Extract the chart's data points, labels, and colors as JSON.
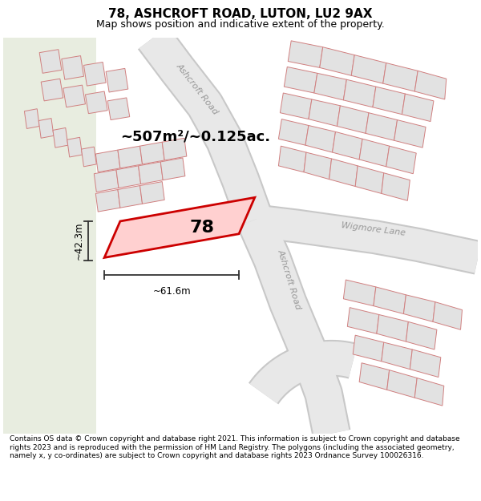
{
  "title": "78, ASHCROFT ROAD, LUTON, LU2 9AX",
  "subtitle": "Map shows position and indicative extent of the property.",
  "footer": "Contains OS data © Crown copyright and database right 2021. This information is subject to Crown copyright and database rights 2023 and is reproduced with the permission of HM Land Registry. The polygons (including the associated geometry, namely x, y co-ordinates) are subject to Crown copyright and database rights 2023 Ordnance Survey 100026316.",
  "bg_map_color": "#f7f6f2",
  "bg_green_color": "#e8ede0",
  "road_color": "#e8e8e8",
  "road_edge_color": "#d0d0d0",
  "plot_line_color": "#e07070",
  "building_fill_color": "#e2e2e2",
  "building_edge_color": "#d08080",
  "highlight_color": "#cc0000",
  "highlight_fill": "#ffd0d0",
  "dim_color": "#333333",
  "area_text": "~507m²/~0.125ac.",
  "label_78": "78",
  "dim_height": "~42.3m",
  "dim_width": "~61.6m",
  "road_label_ashcroft1": "Ashcroft Road",
  "road_label_ashcroft2": "Ashcroft Road",
  "road_label_wigmore": "Wigmore Lane",
  "title_fontsize": 11,
  "subtitle_fontsize": 9,
  "footer_fontsize": 6.5
}
